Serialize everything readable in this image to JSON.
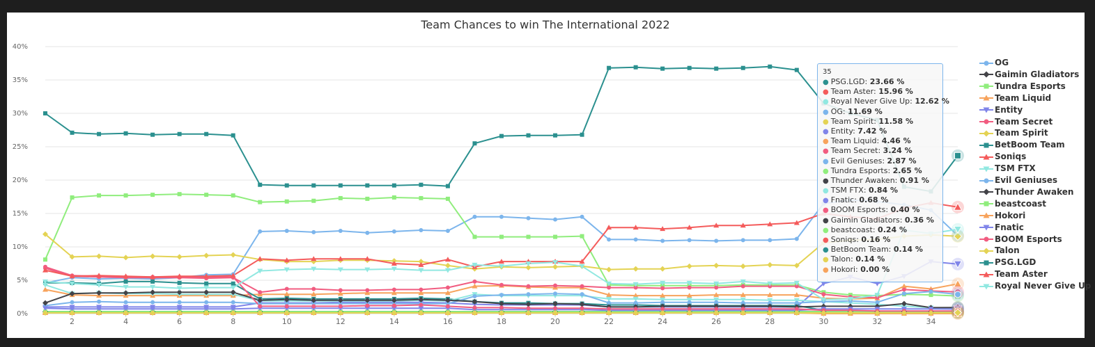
{
  "chart_data": {
    "type": "line",
    "title": "Team Chances to win The International 2022",
    "x_ticks": [
      "2",
      "4",
      "6",
      "8",
      "10",
      "12",
      "14",
      "16",
      "18",
      "20",
      "22",
      "24",
      "26",
      "28",
      "30",
      "32",
      "34"
    ],
    "y_ticks": [
      "0%",
      "5%",
      "10%",
      "15%",
      "20%",
      "25%",
      "30%",
      "35%",
      "40%"
    ],
    "xlim": [
      1,
      35
    ],
    "ylim": [
      0,
      40
    ],
    "grid": true,
    "legend_position": "right",
    "x": [
      1,
      2,
      3,
      4,
      5,
      6,
      7,
      8,
      9,
      10,
      11,
      12,
      13,
      14,
      15,
      16,
      17,
      18,
      19,
      20,
      21,
      22,
      23,
      24,
      25,
      26,
      27,
      28,
      29,
      30,
      31,
      32,
      33,
      34,
      35
    ],
    "series": [
      {
        "name": "OG",
        "color": "#7cb5ec",
        "marker": "circle",
        "values": [
          4.6,
          5.4,
          5.2,
          5.3,
          5.2,
          5.4,
          5.8,
          5.9,
          12.3,
          12.4,
          12.2,
          12.4,
          12.1,
          12.3,
          12.5,
          12.4,
          14.5,
          14.5,
          14.3,
          14.1,
          14.5,
          11.1,
          11.1,
          10.9,
          11.0,
          10.9,
          11.0,
          11.0,
          11.2,
          16.5,
          17.0,
          16.8,
          16.3,
          15.5,
          11.69
        ]
      },
      {
        "name": "Gaimin Gladiators",
        "color": "#434348",
        "marker": "diamond",
        "values": [
          0.3,
          0.3,
          0.3,
          0.3,
          0.3,
          0.3,
          0.3,
          0.3,
          0.3,
          0.3,
          0.3,
          0.3,
          0.3,
          0.3,
          0.3,
          0.3,
          0.3,
          0.3,
          0.3,
          0.3,
          0.3,
          0.3,
          0.3,
          0.3,
          0.3,
          0.3,
          0.3,
          0.3,
          0.3,
          0.3,
          0.3,
          0.3,
          0.3,
          0.3,
          0.36
        ]
      },
      {
        "name": "Tundra Esports",
        "color": "#90ed7d",
        "marker": "square",
        "values": [
          8.1,
          17.4,
          17.7,
          17.7,
          17.8,
          17.9,
          17.8,
          17.7,
          16.7,
          16.8,
          16.9,
          17.3,
          17.2,
          17.4,
          17.3,
          17.2,
          11.5,
          11.5,
          11.5,
          11.5,
          11.6,
          4.3,
          4.2,
          4.2,
          4.2,
          4.2,
          4.3,
          4.3,
          4.3,
          3.2,
          2.8,
          2.7,
          2.9,
          2.8,
          2.65
        ]
      },
      {
        "name": "Team Liquid",
        "color": "#f7a35c",
        "marker": "triangle",
        "values": [
          3.6,
          2.8,
          2.7,
          2.7,
          2.7,
          2.7,
          2.7,
          2.7,
          2.9,
          2.9,
          2.9,
          3.0,
          3.1,
          3.1,
          3.1,
          3.1,
          4.1,
          4.2,
          4.0,
          3.9,
          3.9,
          2.8,
          2.7,
          2.7,
          2.7,
          2.8,
          2.8,
          2.8,
          2.8,
          2.3,
          2.2,
          2.3,
          4.1,
          3.7,
          4.46
        ]
      },
      {
        "name": "Entity",
        "color": "#8085e9",
        "marker": "triangle-down",
        "values": [
          1.0,
          1.0,
          1.0,
          1.0,
          1.0,
          1.0,
          1.0,
          1.0,
          1.6,
          1.6,
          1.6,
          1.7,
          1.7,
          1.7,
          1.7,
          1.6,
          1.4,
          1.3,
          1.3,
          1.3,
          1.3,
          1.0,
          1.0,
          1.0,
          1.0,
          1.0,
          1.0,
          1.0,
          1.0,
          4.5,
          5.5,
          4.5,
          5.6,
          7.8,
          7.42
        ]
      },
      {
        "name": "Team Secret",
        "color": "#f15c80",
        "marker": "circle",
        "values": [
          6.8,
          5.6,
          5.5,
          5.4,
          5.4,
          5.4,
          5.3,
          5.4,
          3.2,
          3.7,
          3.7,
          3.5,
          3.5,
          3.6,
          3.6,
          3.9,
          4.8,
          4.3,
          4.1,
          4.2,
          4.1,
          3.9,
          3.9,
          3.8,
          3.9,
          3.9,
          4.1,
          4.1,
          4.1,
          2.9,
          2.5,
          2.4,
          3.6,
          3.4,
          3.24
        ]
      },
      {
        "name": "Team Spirit",
        "color": "#e4d354",
        "marker": "diamond",
        "values": [
          11.9,
          8.5,
          8.6,
          8.4,
          8.6,
          8.5,
          8.7,
          8.8,
          8.1,
          7.8,
          7.8,
          8.0,
          8.0,
          7.9,
          7.8,
          7.2,
          6.7,
          7.0,
          6.9,
          7.0,
          7.1,
          6.6,
          6.7,
          6.7,
          7.1,
          7.2,
          7.1,
          7.3,
          7.2,
          10.6,
          11.0,
          11.1,
          11.6,
          11.8,
          11.58
        ]
      },
      {
        "name": "BetBoom Team",
        "color": "#2b908f",
        "marker": "square",
        "values": [
          4.6,
          4.6,
          4.5,
          4.8,
          4.8,
          4.6,
          4.5,
          4.5,
          2.2,
          2.3,
          2.2,
          2.2,
          2.2,
          2.2,
          2.3,
          2.2,
          1.8,
          1.6,
          1.6,
          1.5,
          1.5,
          1.3,
          1.3,
          1.2,
          1.2,
          1.2,
          1.2,
          1.2,
          1.2,
          0.5,
          0.3,
          0.2,
          0.2,
          0.1,
          0.14
        ]
      },
      {
        "name": "Soniqs",
        "color": "#f45b5b",
        "marker": "triangle",
        "values": [
          0.2,
          0.2,
          0.2,
          0.2,
          0.2,
          0.2,
          0.2,
          0.2,
          0.2,
          0.2,
          0.2,
          0.2,
          0.2,
          0.2,
          0.2,
          0.2,
          0.2,
          0.2,
          0.2,
          0.2,
          0.2,
          0.2,
          0.2,
          0.2,
          0.2,
          0.2,
          0.2,
          0.2,
          0.2,
          0.2,
          0.2,
          0.2,
          0.2,
          0.2,
          0.16
        ]
      },
      {
        "name": "TSM FTX",
        "color": "#91e8e1",
        "marker": "triangle-down",
        "values": [
          4.3,
          3.0,
          3.1,
          3.0,
          3.0,
          2.9,
          2.9,
          2.9,
          1.9,
          1.9,
          1.9,
          1.9,
          1.9,
          1.9,
          2.0,
          1.9,
          2.9,
          2.7,
          2.7,
          2.7,
          2.7,
          2.2,
          2.2,
          2.1,
          2.1,
          2.1,
          2.1,
          2.0,
          2.0,
          1.8,
          1.6,
          1.4,
          1.1,
          0.9,
          0.84
        ]
      },
      {
        "name": "Evil Geniuses",
        "color": "#7cb5ec",
        "marker": "circle",
        "values": [
          1.2,
          1.7,
          1.8,
          1.7,
          1.7,
          1.7,
          1.7,
          1.7,
          1.5,
          1.5,
          1.5,
          1.5,
          1.5,
          1.5,
          1.5,
          1.5,
          2.6,
          2.8,
          2.9,
          3.0,
          2.9,
          1.6,
          1.6,
          1.7,
          1.7,
          1.7,
          1.6,
          1.6,
          1.6,
          1.8,
          1.9,
          1.7,
          3.0,
          3.3,
          2.87
        ]
      },
      {
        "name": "Thunder Awaken",
        "color": "#434348",
        "marker": "diamond",
        "values": [
          1.6,
          3.0,
          3.1,
          3.1,
          3.2,
          3.2,
          3.2,
          3.2,
          2.0,
          2.1,
          2.0,
          2.0,
          2.0,
          2.0,
          2.1,
          2.0,
          1.8,
          1.5,
          1.4,
          1.5,
          1.4,
          1.0,
          1.0,
          1.1,
          1.1,
          1.1,
          1.1,
          1.1,
          1.0,
          1.1,
          1.1,
          1.1,
          1.5,
          0.9,
          0.91
        ]
      },
      {
        "name": "beastcoast",
        "color": "#90ed7d",
        "marker": "square",
        "values": [
          0.3,
          0.3,
          0.3,
          0.3,
          0.3,
          0.3,
          0.3,
          0.3,
          0.3,
          0.3,
          0.3,
          0.3,
          0.3,
          0.3,
          0.3,
          0.3,
          0.3,
          0.3,
          0.3,
          0.3,
          0.3,
          0.3,
          0.3,
          0.3,
          0.3,
          0.3,
          0.3,
          0.3,
          0.3,
          0.3,
          0.3,
          0.3,
          0.3,
          0.3,
          0.24
        ]
      },
      {
        "name": "Hokori",
        "color": "#f7a35c",
        "marker": "triangle",
        "values": [
          0.1,
          0.1,
          0.1,
          0.1,
          0.1,
          0.1,
          0.1,
          0.1,
          0.1,
          0.1,
          0.1,
          0.1,
          0.1,
          0.1,
          0.1,
          0.1,
          0.1,
          0.1,
          0.1,
          0.1,
          0.1,
          0.1,
          0.1,
          0.1,
          0.1,
          0.1,
          0.1,
          0.1,
          0.1,
          0.0,
          0.0,
          0.0,
          0.0,
          0.0,
          0.0
        ]
      },
      {
        "name": "Fnatic",
        "color": "#8085e9",
        "marker": "triangle-down",
        "values": [
          0.8,
          0.7,
          0.7,
          0.7,
          0.7,
          0.7,
          0.7,
          0.7,
          0.8,
          0.8,
          0.8,
          0.8,
          0.8,
          0.8,
          0.8,
          0.8,
          0.6,
          0.6,
          0.6,
          0.6,
          0.6,
          0.5,
          0.5,
          0.5,
          0.5,
          0.5,
          0.5,
          0.5,
          0.5,
          0.7,
          0.7,
          0.7,
          0.7,
          0.7,
          0.68
        ]
      },
      {
        "name": "BOOM Esports",
        "color": "#f15c80",
        "marker": "circle",
        "values": [
          7.0,
          5.7,
          5.6,
          5.5,
          5.5,
          5.5,
          5.5,
          5.5,
          1.1,
          1.1,
          1.1,
          1.1,
          1.2,
          1.2,
          1.3,
          1.1,
          0.9,
          0.9,
          0.8,
          0.8,
          0.8,
          0.7,
          0.7,
          0.7,
          0.7,
          0.7,
          0.7,
          0.7,
          0.7,
          0.5,
          0.5,
          0.4,
          0.4,
          0.4,
          0.4
        ]
      },
      {
        "name": "Talon",
        "color": "#e4d354",
        "marker": "diamond",
        "values": [
          0.1,
          0.1,
          0.1,
          0.1,
          0.1,
          0.1,
          0.1,
          0.1,
          0.1,
          0.1,
          0.1,
          0.1,
          0.1,
          0.1,
          0.1,
          0.1,
          0.1,
          0.1,
          0.1,
          0.1,
          0.1,
          0.1,
          0.1,
          0.1,
          0.1,
          0.1,
          0.1,
          0.1,
          0.1,
          0.1,
          0.1,
          0.1,
          0.1,
          0.1,
          0.14
        ]
      },
      {
        "name": "PSG.LGD",
        "color": "#2b908f",
        "marker": "square",
        "values": [
          30.0,
          27.1,
          26.9,
          27.0,
          26.8,
          26.9,
          26.9,
          26.7,
          19.3,
          19.2,
          19.2,
          19.2,
          19.2,
          19.2,
          19.3,
          19.1,
          25.5,
          26.6,
          26.7,
          26.7,
          26.8,
          36.8,
          36.9,
          36.7,
          36.8,
          36.7,
          36.8,
          37.0,
          36.5,
          31.5,
          30.0,
          29.0,
          19.0,
          18.3,
          23.66
        ]
      },
      {
        "name": "Team Aster",
        "color": "#f45b5b",
        "marker": "triangle",
        "values": [
          6.5,
          5.6,
          5.7,
          5.6,
          5.5,
          5.6,
          5.6,
          5.7,
          8.2,
          8.0,
          8.2,
          8.2,
          8.2,
          7.5,
          7.3,
          8.1,
          7.0,
          7.8,
          7.8,
          7.8,
          7.8,
          12.9,
          12.9,
          12.7,
          12.9,
          13.2,
          13.2,
          13.4,
          13.6,
          15.0,
          14.5,
          14.2,
          15.8,
          16.6,
          15.96
        ]
      },
      {
        "name": "Royal Never Give Up",
        "color": "#91e8e1",
        "marker": "triangle-down",
        "values": [
          4.8,
          4.5,
          4.3,
          4.0,
          4.0,
          3.8,
          3.9,
          3.9,
          6.4,
          6.6,
          6.7,
          6.6,
          6.6,
          6.7,
          6.5,
          6.5,
          7.3,
          7.1,
          7.5,
          7.7,
          7.1,
          4.5,
          4.4,
          4.6,
          4.6,
          4.5,
          4.8,
          4.5,
          4.6,
          2.1,
          2.2,
          2.8,
          12.5,
          12.0,
          12.62
        ]
      }
    ]
  },
  "tooltip": {
    "header": "35",
    "rows": [
      {
        "name": "PSG.LGD",
        "value": "23.66 %",
        "color": "#2b908f"
      },
      {
        "name": "Team Aster",
        "value": "15.96 %",
        "color": "#f45b5b"
      },
      {
        "name": "Royal Never Give Up",
        "value": "12.62 %",
        "color": "#91e8e1"
      },
      {
        "name": "OG",
        "value": "11.69 %",
        "color": "#7cb5ec"
      },
      {
        "name": "Team Spirit",
        "value": "11.58 %",
        "color": "#e4d354"
      },
      {
        "name": "Entity",
        "value": "7.42 %",
        "color": "#8085e9"
      },
      {
        "name": "Team Liquid",
        "value": "4.46 %",
        "color": "#f7a35c"
      },
      {
        "name": "Team Secret",
        "value": "3.24 %",
        "color": "#f15c80"
      },
      {
        "name": "Evil Geniuses",
        "value": "2.87 %",
        "color": "#7cb5ec"
      },
      {
        "name": "Tundra Esports",
        "value": "2.65 %",
        "color": "#90ed7d"
      },
      {
        "name": "Thunder Awaken",
        "value": "0.91 %",
        "color": "#434348"
      },
      {
        "name": "TSM FTX",
        "value": "0.84 %",
        "color": "#91e8e1"
      },
      {
        "name": "Fnatic",
        "value": "0.68 %",
        "color": "#8085e9"
      },
      {
        "name": "BOOM Esports",
        "value": "0.40 %",
        "color": "#f15c80"
      },
      {
        "name": "Gaimin Gladiators",
        "value": "0.36 %",
        "color": "#434348"
      },
      {
        "name": "beastcoast",
        "value": "0.24 %",
        "color": "#90ed7d"
      },
      {
        "name": "Soniqs",
        "value": "0.16 %",
        "color": "#f45b5b"
      },
      {
        "name": "BetBoom Team",
        "value": "0.14 %",
        "color": "#2b908f"
      },
      {
        "name": "Talon",
        "value": "0.14 %",
        "color": "#e4d354"
      },
      {
        "name": "Hokori",
        "value": "0.00 %",
        "color": "#f7a35c"
      }
    ]
  }
}
